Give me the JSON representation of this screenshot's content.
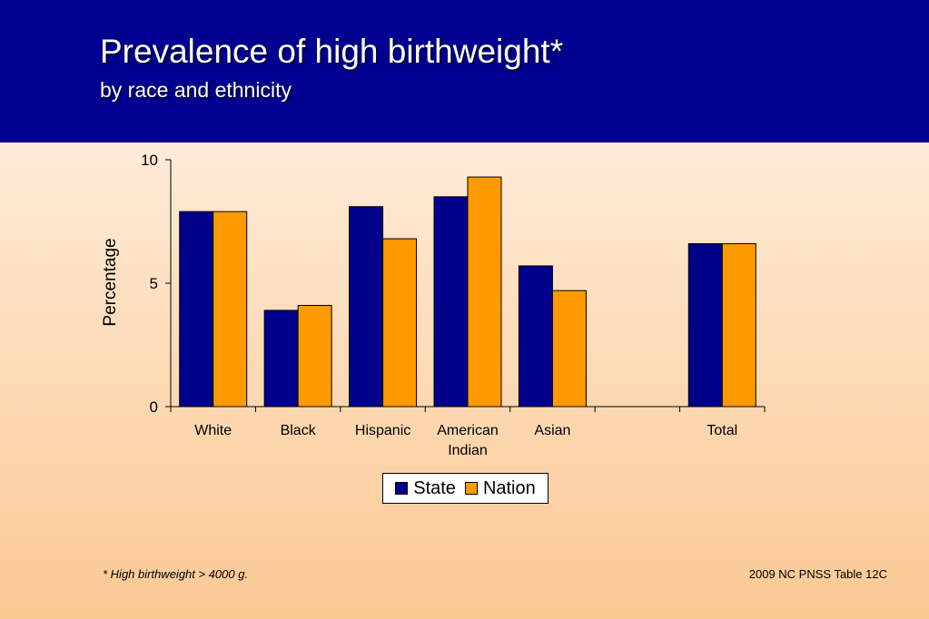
{
  "title": "Prevalence of high birthweight*",
  "subtitle": "by race and ethnicity",
  "footnote": "*  High birthweight > 4000 g.",
  "source": "2009 NC PNSS Table 12C",
  "colors": {
    "header": "#00008e",
    "state": "#00008b",
    "nation": "#ff9a00"
  },
  "chart_data": {
    "type": "bar",
    "categories": [
      [
        "White"
      ],
      [
        "Black"
      ],
      [
        "Hispanic"
      ],
      [
        "American",
        "Indian"
      ],
      [
        "Asian"
      ],
      [
        ""
      ],
      [
        "Total"
      ]
    ],
    "series": [
      {
        "name": "State",
        "values": [
          7.9,
          3.9,
          8.1,
          8.5,
          5.7,
          null,
          6.6
        ]
      },
      {
        "name": "Nation",
        "values": [
          7.9,
          4.1,
          6.8,
          9.3,
          4.7,
          null,
          6.6
        ]
      }
    ],
    "ylabel": "Percentage",
    "ylim": [
      0,
      10
    ],
    "yticks": [
      "0",
      "5",
      "10"
    ],
    "grid": false,
    "legend": "bottom"
  }
}
